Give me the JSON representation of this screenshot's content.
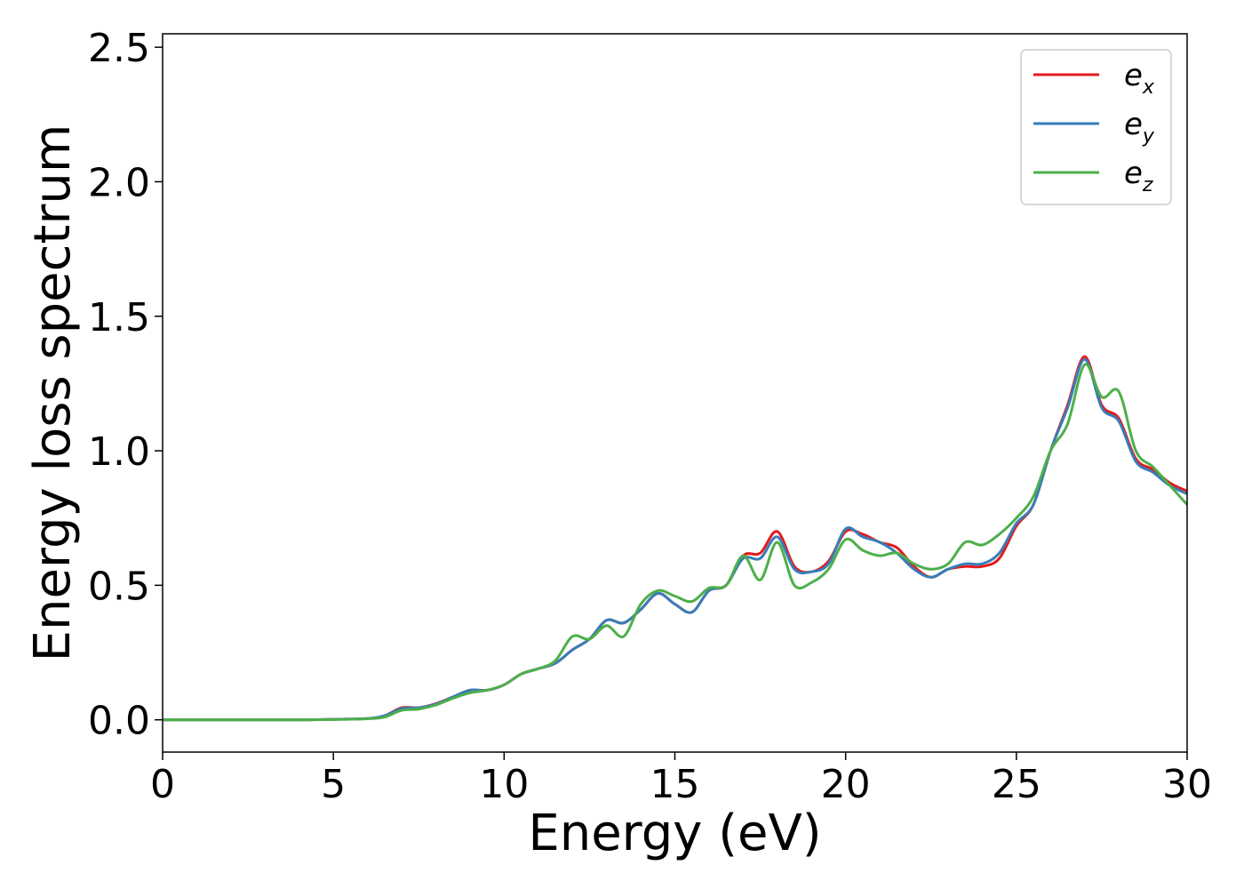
{
  "chart_data": {
    "type": "line",
    "xlabel": "Energy (eV)",
    "ylabel": "Energy loss spectrum",
    "xlim": [
      0,
      30
    ],
    "ylim": [
      -0.12,
      2.55
    ],
    "xticks": [
      "0",
      "5",
      "10",
      "15",
      "20",
      "25",
      "30"
    ],
    "yticks": [
      "0.0",
      "0.5",
      "1.0",
      "1.5",
      "2.0",
      "2.5"
    ],
    "grid": false,
    "legend_position": "top-right",
    "x": [
      0,
      2,
      4,
      5,
      6,
      6.5,
      7,
      7.5,
      8,
      8.5,
      9,
      9.5,
      10,
      10.5,
      11,
      11.5,
      12,
      12.5,
      13,
      13.5,
      14,
      14.5,
      15,
      15.5,
      16,
      16.5,
      17,
      17.5,
      18,
      18.5,
      19,
      19.5,
      20,
      20.5,
      21,
      21.5,
      22,
      22.5,
      23,
      23.5,
      24,
      24.5,
      25,
      25.5,
      26,
      26.5,
      27,
      27.5,
      28,
      28.5,
      29,
      29.5,
      30
    ],
    "series": [
      {
        "name": "e",
        "subscript": "x",
        "color": "#e41a1c",
        "values": [
          0,
          0,
          0,
          0.002,
          0.005,
          0.015,
          0.045,
          0.045,
          0.06,
          0.085,
          0.11,
          0.11,
          0.13,
          0.17,
          0.19,
          0.21,
          0.26,
          0.3,
          0.37,
          0.36,
          0.41,
          0.47,
          0.43,
          0.4,
          0.48,
          0.5,
          0.61,
          0.62,
          0.7,
          0.57,
          0.55,
          0.59,
          0.7,
          0.69,
          0.66,
          0.64,
          0.57,
          0.53,
          0.56,
          0.57,
          0.57,
          0.6,
          0.72,
          0.8,
          1.0,
          1.17,
          1.35,
          1.17,
          1.12,
          0.97,
          0.93,
          0.88,
          0.85
        ]
      },
      {
        "name": "e",
        "subscript": "y",
        "color": "#377eb8",
        "values": [
          0,
          0,
          0,
          0.002,
          0.005,
          0.015,
          0.042,
          0.045,
          0.058,
          0.085,
          0.11,
          0.11,
          0.13,
          0.17,
          0.19,
          0.21,
          0.26,
          0.3,
          0.37,
          0.36,
          0.41,
          0.47,
          0.43,
          0.4,
          0.48,
          0.5,
          0.6,
          0.6,
          0.68,
          0.56,
          0.55,
          0.58,
          0.71,
          0.68,
          0.66,
          0.62,
          0.56,
          0.53,
          0.56,
          0.58,
          0.58,
          0.62,
          0.73,
          0.8,
          1.0,
          1.16,
          1.34,
          1.16,
          1.11,
          0.96,
          0.92,
          0.87,
          0.84
        ]
      },
      {
        "name": "e",
        "subscript": "z",
        "color": "#4daf4a",
        "values": [
          0,
          0,
          0,
          0.001,
          0.004,
          0.01,
          0.035,
          0.04,
          0.055,
          0.08,
          0.1,
          0.11,
          0.13,
          0.17,
          0.19,
          0.22,
          0.31,
          0.3,
          0.35,
          0.31,
          0.43,
          0.48,
          0.46,
          0.44,
          0.49,
          0.5,
          0.61,
          0.52,
          0.66,
          0.5,
          0.51,
          0.56,
          0.67,
          0.63,
          0.61,
          0.62,
          0.58,
          0.56,
          0.58,
          0.66,
          0.65,
          0.69,
          0.75,
          0.83,
          1.0,
          1.1,
          1.32,
          1.2,
          1.22,
          1.0,
          0.94,
          0.87,
          0.8
        ]
      }
    ]
  }
}
